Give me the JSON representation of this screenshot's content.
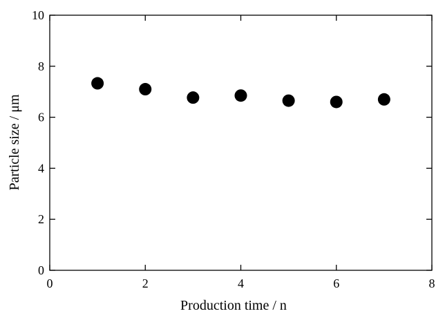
{
  "chart_data": {
    "type": "scatter",
    "title": "",
    "xlabel": "Production time / n",
    "ylabel": "Particle size / μm",
    "xlim": [
      0,
      8
    ],
    "ylim": [
      0,
      10
    ],
    "xticks": [
      0,
      2,
      4,
      6,
      8
    ],
    "yticks": [
      0,
      2,
      4,
      6,
      8,
      10
    ],
    "grid": false,
    "series": [
      {
        "color": "#000000",
        "marker": "circle",
        "x": [
          1,
          2,
          3,
          4,
          5,
          6,
          7
        ],
        "y": [
          7.33,
          7.1,
          6.77,
          6.85,
          6.65,
          6.6,
          6.7
        ]
      }
    ]
  }
}
